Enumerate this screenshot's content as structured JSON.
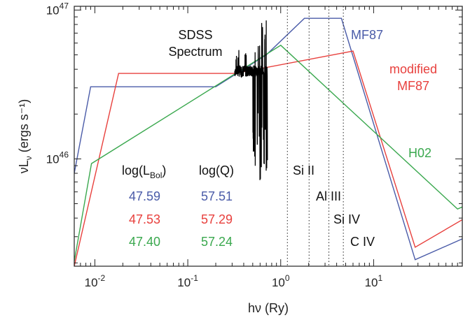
{
  "chart_data": {
    "type": "line",
    "title": "",
    "xlabel": "hν (Ry)",
    "ylabel": "νL_ν (ergs s⁻¹)",
    "x_scale": "log",
    "y_scale": "log",
    "xlim": [
      0.006,
      90
    ],
    "ylim": [
      1.9e+45,
      1.06e+47
    ],
    "x_ticks": [
      {
        "value": 0.01,
        "mantissa": "10",
        "exp": "-2"
      },
      {
        "value": 0.1,
        "mantissa": "10",
        "exp": "-1"
      },
      {
        "value": 1,
        "mantissa": "10",
        "exp": "0"
      },
      {
        "value": 10,
        "mantissa": "10",
        "exp": "1"
      }
    ],
    "y_ticks": [
      {
        "value": 1e+46,
        "mantissa": "10",
        "exp": "46"
      },
      {
        "value": 1e+47,
        "mantissa": "10",
        "exp": "47"
      }
    ],
    "series": [
      {
        "name": "MF87",
        "color": "#4a5ba8",
        "points": [
          [
            0.006,
            8e+45
          ],
          [
            0.009,
            3.05e+46
          ],
          [
            0.2,
            3.05e+46
          ],
          [
            0.7,
            5e+46
          ],
          [
            1.8,
            8.8e+46
          ],
          [
            4.5,
            8.8e+46
          ],
          [
            28,
            2.1e+45
          ],
          [
            90,
            2.9e+45
          ]
        ]
      },
      {
        "name": "modified MF87",
        "color": "#e8403d",
        "points": [
          [
            0.006,
            1.9e+45
          ],
          [
            0.018,
            3.75e+46
          ],
          [
            0.32,
            3.75e+46
          ],
          [
            6.0,
            5.3e+46
          ],
          [
            28,
            2.55e+45
          ],
          [
            90,
            3.9e+45
          ]
        ]
      },
      {
        "name": "H02",
        "color": "#3aa84e",
        "points": [
          [
            0.006,
            2.05e+45
          ],
          [
            0.0092,
            9.3e+45
          ],
          [
            1.0,
            5.8e+46
          ],
          [
            80,
            4.6e+45
          ],
          [
            90,
            4.75e+45
          ]
        ]
      }
    ],
    "spectrum": {
      "label_line1": "SDSS",
      "label_line2": "Spectrum",
      "color": "#000000",
      "x_range": [
        0.32,
        0.72
      ]
    },
    "vlines": [
      {
        "x": 1.18,
        "label": "Si II"
      },
      {
        "x": 2.02,
        "label": "Al III"
      },
      {
        "x": 3.3,
        "label": "Si IV"
      },
      {
        "x": 4.72,
        "label": "C IV"
      }
    ],
    "legend_labels": {
      "MF87": "MF87",
      "modified_line1": "modified",
      "modified_line2": "MF87",
      "H02": "H02"
    },
    "table": {
      "header_lbol_prefix": "log(L",
      "header_lbol_sub": "Bol",
      "header_lbol_suffix": ")",
      "header_q": "log(Q)",
      "rows": [
        {
          "lbol": "47.59",
          "q": "57.51",
          "color": "#4a5ba8"
        },
        {
          "lbol": "47.53",
          "q": "57.29",
          "color": "#e8403d"
        },
        {
          "lbol": "47.40",
          "q": "57.24",
          "color": "#3aa84e"
        }
      ]
    }
  }
}
